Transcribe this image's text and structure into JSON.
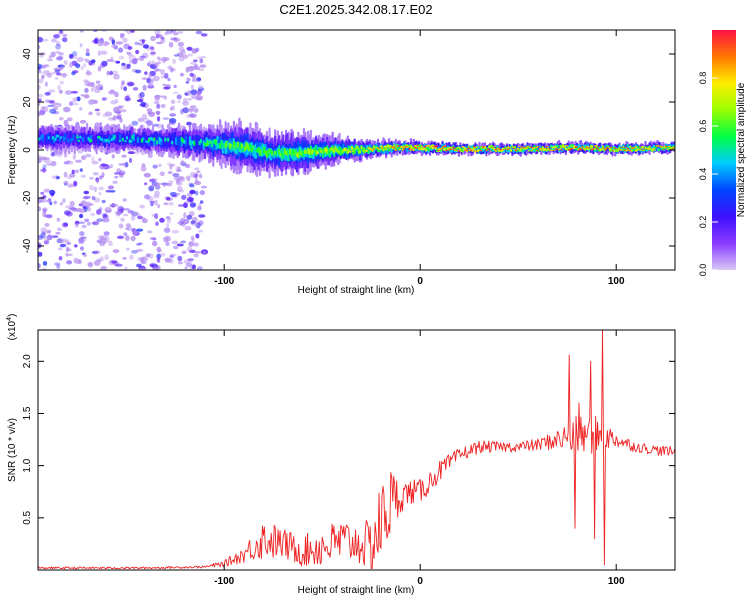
{
  "title": "C2E1.2025.342.08.17.E02",
  "colors": {
    "snr_line": "#ee2222",
    "colormap": [
      "#d9c8f5",
      "#8a3dff",
      "#3d10ff",
      "#0044ff",
      "#00ccff",
      "#00ff44",
      "#99ff00",
      "#ffee00",
      "#ff7700",
      "#ff1144"
    ],
    "upper_band_core": "#ff2222",
    "noise_dots": "#b48cf0"
  },
  "chart_data": [
    {
      "type": "heatmap",
      "xlabel": "Height of straight line (km)",
      "ylabel": "Frequency (Hz)",
      "xlim": [
        -195,
        130
      ],
      "ylim": [
        -50,
        50
      ],
      "xticks": [
        -100,
        0,
        100
      ],
      "xtick_labels": [
        "-100",
        "0",
        "100"
      ],
      "yticks": [
        -40,
        -20,
        0,
        20,
        40
      ],
      "ytick_labels": [
        "-40",
        "-20",
        "0",
        "20",
        "40"
      ],
      "colorbar": {
        "label": "Normalized spectral amplitude",
        "range": [
          0,
          1
        ],
        "ticks": [
          0.0,
          0.2,
          0.4,
          0.6,
          0.8
        ],
        "tick_labels": [
          "0.0",
          "0.2",
          "0.4",
          "0.6",
          "0.8"
        ]
      },
      "noise_region": {
        "x_range": [
          -195,
          -110
        ],
        "y_range": [
          -50,
          50
        ],
        "amplitude": 0.15
      },
      "ridge": {
        "description": "Narrow spectral band near 0 Hz",
        "x": [
          -195,
          -150,
          -110,
          -90,
          -75,
          -60,
          -40,
          -25,
          -10,
          0,
          20,
          50,
          80,
          100,
          130
        ],
        "center_hz": [
          5,
          4.5,
          3,
          1,
          -1.5,
          -1,
          0,
          0.5,
          1,
          1,
          0.5,
          0.5,
          1,
          0.5,
          1
        ],
        "halfwidth_hz": [
          3,
          3,
          4,
          6,
          5,
          5,
          3,
          2,
          1.5,
          1.5,
          1.2,
          1.2,
          1.2,
          1.2,
          1.2
        ],
        "peak_amplitude": [
          0.45,
          0.5,
          0.55,
          0.6,
          0.6,
          0.65,
          0.7,
          0.8,
          0.9,
          0.95,
          0.95,
          0.9,
          0.9,
          0.9,
          0.85
        ]
      }
    },
    {
      "type": "line",
      "xlabel": "Height of straight line (km)",
      "ylabel": "SNR (10 * v/v)",
      "scale_label_base": "(x10",
      "scale_label_exp": "4",
      "scale_label_end": ")",
      "xlim": [
        -195,
        130
      ],
      "ylim": [
        0,
        2.3
      ],
      "xticks": [
        -100,
        0,
        100
      ],
      "xtick_labels": [
        "-100",
        "0",
        "100"
      ],
      "yticks": [
        0.5,
        1.0,
        1.5,
        2.0
      ],
      "ytick_labels": [
        "0.5",
        "1.0",
        "1.5",
        "2.0"
      ],
      "series": [
        {
          "name": "SNR",
          "envelope_x": [
            -195,
            -140,
            -110,
            -100,
            -90,
            -80,
            -70,
            -60,
            -50,
            -40,
            -30,
            -25,
            -20,
            -15,
            -10,
            -5,
            0,
            10,
            20,
            30,
            40,
            50,
            60,
            70,
            80,
            90,
            100,
            110,
            120,
            130
          ],
          "envelope_mean": [
            0.02,
            0.02,
            0.03,
            0.06,
            0.15,
            0.3,
            0.25,
            0.18,
            0.22,
            0.28,
            0.25,
            0.2,
            0.45,
            0.65,
            0.7,
            0.75,
            0.75,
            0.95,
            1.1,
            1.18,
            1.18,
            1.18,
            1.2,
            1.25,
            1.28,
            1.3,
            1.25,
            1.18,
            1.15,
            1.13
          ],
          "envelope_amplitude": [
            0.01,
            0.01,
            0.01,
            0.03,
            0.08,
            0.2,
            0.15,
            0.15,
            0.2,
            0.22,
            0.2,
            0.3,
            0.4,
            0.35,
            0.15,
            0.12,
            0.12,
            0.1,
            0.07,
            0.06,
            0.05,
            0.05,
            0.06,
            0.1,
            0.2,
            0.18,
            0.08,
            0.05,
            0.05,
            0.05
          ],
          "spikes": [
            {
              "x": 76,
              "y": 2.06
            },
            {
              "x": 79,
              "y": 0.4
            },
            {
              "x": 81,
              "y": 1.6
            },
            {
              "x": 87,
              "y": 2.0
            },
            {
              "x": 89,
              "y": 0.3
            },
            {
              "x": 93,
              "y": 2.3
            },
            {
              "x": 94,
              "y": 0.05
            }
          ]
        }
      ]
    }
  ]
}
